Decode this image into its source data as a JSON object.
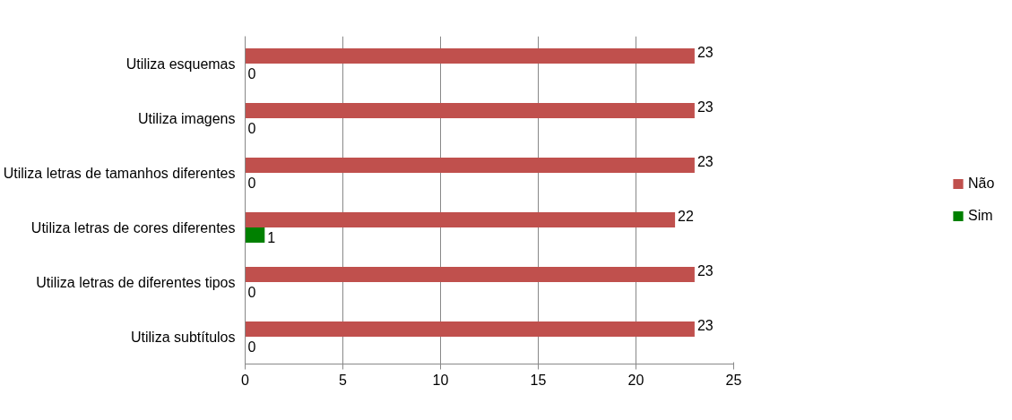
{
  "chart_data": {
    "type": "bar",
    "orientation": "horizontal",
    "categories": [
      "Utiliza esquemas",
      "Utiliza imagens",
      "Utiliza letras de tamanhos diferentes",
      "Utiliza letras de cores diferentes",
      "Utiliza letras de diferentes tipos",
      "Utiliza subtítulos"
    ],
    "series": [
      {
        "name": "Não",
        "color": "#c0504d",
        "values": [
          23,
          23,
          23,
          22,
          23,
          23
        ]
      },
      {
        "name": "Sim",
        "color": "#008000",
        "values": [
          0,
          0,
          0,
          1,
          0,
          0
        ]
      }
    ],
    "xlim": [
      0,
      25
    ],
    "xticks": [
      0,
      5,
      10,
      15,
      20,
      25
    ],
    "grid": "x",
    "legend": "right",
    "data_labels": true
  }
}
